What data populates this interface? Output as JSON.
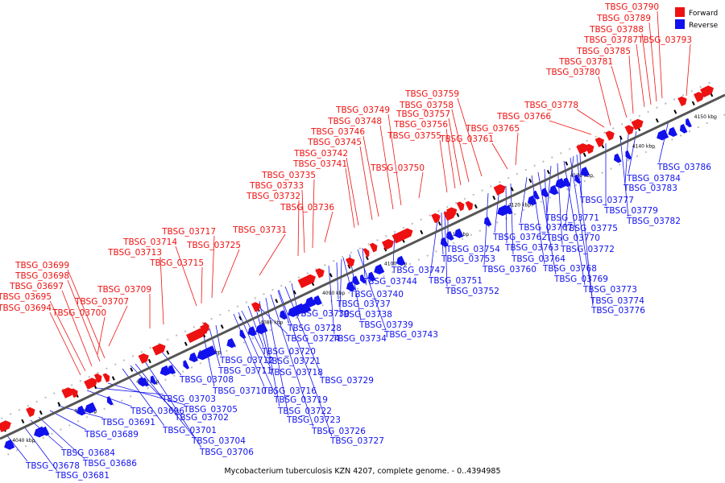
{
  "caption": "Mycobacterium tuberculosis KZN 4207, complete genome. - 0..4394985",
  "legend": [
    {
      "label": "Forward",
      "color": "#ee1111"
    },
    {
      "label": "Reverse",
      "color": "#1111ee"
    }
  ],
  "colors": {
    "forward": "#ee1111",
    "reverse": "#1111ee",
    "backbone": "#555555"
  },
  "kbp_labels": [
    "4040 kbp",
    "4050 kbp",
    "4060 kbp",
    "4070 kbp",
    "4080 kbp",
    "4090 kbp",
    "4100 kbp",
    "4110 kbp",
    "4120 kbp",
    "4130 kbp",
    "4140 kbp",
    "4150 kbp"
  ],
  "forward_labels": [
    "TBSG_03694",
    "TBSG_03695",
    "TBSG_03697",
    "TBSG_03698",
    "TBSG_03699",
    "TBSG_03700",
    "TBSG_03707",
    "TBSG_03709",
    "TBSG_03713",
    "TBSG_03714",
    "TBSG_03715",
    "TBSG_03717",
    "TBSG_03725",
    "TBSG_03731",
    "TBSG_03732",
    "TBSG_03733",
    "TBSG_03735",
    "TBSG_03736",
    "TBSG_03741",
    "TBSG_03742",
    "TBSG_03745",
    "TBSG_03746",
    "TBSG_03748",
    "TBSG_03749",
    "TBSG_03750",
    "TBSG_03755",
    "TBSG_03756",
    "TBSG_03757",
    "TBSG_03758",
    "TBSG_03759",
    "TBSG_03761",
    "TBSG_03765",
    "TBSG_03766",
    "TBSG_03778",
    "TBSG_03780",
    "TBSG_03781",
    "TBSG_03785",
    "TBSG_03787",
    "TBSG_03788",
    "TBSG_03789",
    "TBSG_03790",
    "TBSG_03793"
  ],
  "reverse_labels": [
    "TBSG_03678",
    "TBSG_03681",
    "TBSG_03684",
    "TBSG_03686",
    "TBSG_03689",
    "TBSG_03691",
    "TBSG_03696",
    "TBSG_03701",
    "TBSG_03702",
    "TBSG_03703",
    "TBSG_03704",
    "TBSG_03705",
    "TBSG_03706",
    "TBSG_03708",
    "TBSG_03710",
    "TBSG_03711",
    "TBSG_03712",
    "TBSG_03716",
    "TBSG_03718",
    "TBSG_03719",
    "TBSG_03720",
    "TBSG_03721",
    "TBSG_03722",
    "TBSG_03723",
    "TBSG_03724",
    "TBSG_03726",
    "TBSG_03727",
    "TBSG_03728",
    "TBSG_03729",
    "TBSG_03730",
    "TBSG_03734",
    "TBSG_03737",
    "TBSG_03738",
    "TBSG_03739",
    "TBSG_03740",
    "TBSG_03743",
    "TBSG_03744",
    "TBSG_03747",
    "TBSG_03751",
    "TBSG_03752",
    "TBSG_03753",
    "TBSG_03754",
    "TBSG_03760",
    "TBSG_03762",
    "TBSG_03763",
    "TBSG_03764",
    "TBSG_03767",
    "TBSG_03768",
    "TBSG_03769",
    "TBSG_03770",
    "TBSG_03771",
    "TBSG_03772",
    "TBSG_03773",
    "TBSG_03774",
    "TBSG_03775",
    "TBSG_03776",
    "TBSG_03777",
    "TBSG_03779",
    "TBSG_03782",
    "TBSG_03783",
    "TBSG_03784",
    "TBSG_03786"
  ]
}
